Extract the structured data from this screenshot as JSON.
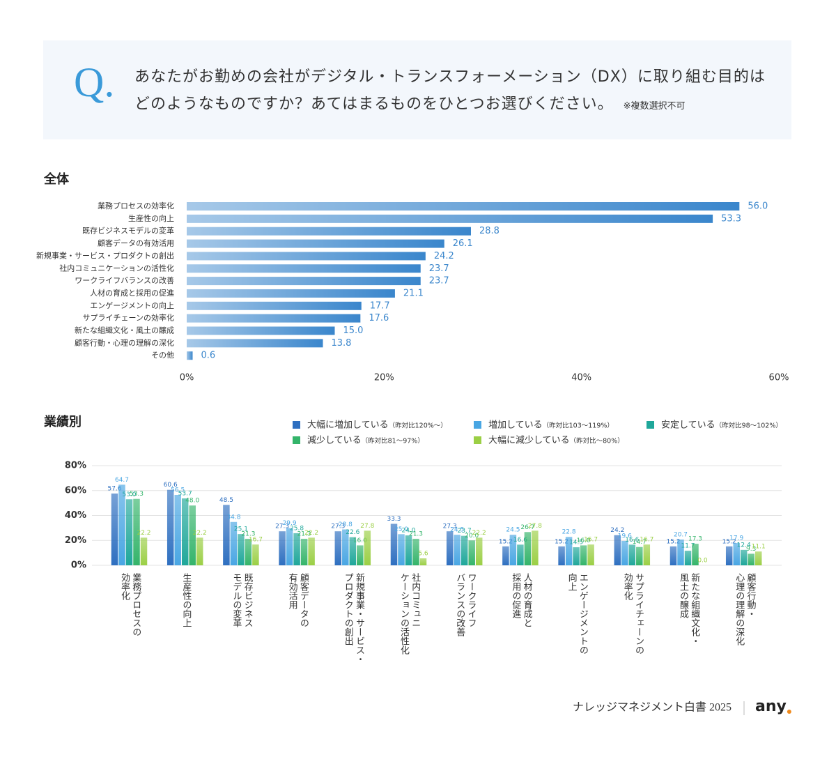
{
  "question": {
    "mark": "Q.",
    "line1": "あなたがお勤めの会社がデジタル・トランスフォーメーション（DX）に取り組む目的は",
    "line2": "どのようなものですか？あてはまるものをひとつお選びください。",
    "note": "※複数選択不可"
  },
  "chart_data": [
    {
      "type": "hbar",
      "title": "全体",
      "color": "#3a86cc",
      "categories": [
        "業務プロセスの効率化",
        "生産性の向上",
        "既存ビジネスモデルの変革",
        "顧客データの有効活用",
        "新規事業・サービス・プロダクトの創出",
        "社内コミュニケーションの活性化",
        "ワークライフバランスの改善",
        "人材の育成と採用の促進",
        "エンゲージメントの向上",
        "サプライチェーンの効率化",
        "新たな組織文化・風土の醸成",
        "顧客行動・心理の理解の深化",
        "その他"
      ],
      "values": [
        56.0,
        53.3,
        28.8,
        26.1,
        24.2,
        23.7,
        23.7,
        21.1,
        17.7,
        17.6,
        15.0,
        13.8,
        0.6
      ],
      "value_labels": [
        "56.0",
        "53.3",
        "28.8",
        "26.1",
        "24.2",
        "23.7",
        "23.7",
        "21.1",
        "17.7",
        "17.6",
        "15.0",
        "13.8",
        "0.6"
      ],
      "xlim": [
        0,
        60
      ],
      "xticks": [
        {
          "value": 0,
          "label": "0%"
        },
        {
          "value": 20,
          "label": "20%"
        },
        {
          "value": 40,
          "label": "40%"
        },
        {
          "value": 60,
          "label": "60%"
        }
      ],
      "grid": false
    },
    {
      "type": "grouped-bar",
      "title": "業績別",
      "categories": [
        "業務プロセスの\n効率化",
        "生産性の向上",
        "既存ビジネス\nモデルの変革",
        "顧客データの\n有効活用",
        "新規事業・サービス・\nプロダクトの創出",
        "社内コミュニ\nケーションの活性化",
        "ワークライフ\nバランスの改善",
        "人材の育成と\n採用の促進",
        "エンゲージメントの\n向上",
        "サプライチェーンの\n効率化",
        "新たな組織文化・\n風土の醸成",
        "顧客行動・\n心理の理解の深化"
      ],
      "series": [
        {
          "name": "大幅に増加している",
          "name_note": "（昨対比120%〜）",
          "color": "#2e6fc0",
          "values": [
            57.6,
            60.6,
            48.5,
            27.3,
            27.3,
            33.3,
            27.3,
            15.2,
            15.2,
            24.2,
            15.2,
            15.2
          ],
          "value_labels": [
            "57.6",
            "60.6",
            "48.5",
            "27.3",
            "27.3",
            "33.3",
            "27.3",
            "15.2",
            "15.2",
            "24.2",
            "15.2",
            "15.2"
          ]
        },
        {
          "name": "増加している",
          "name_note": "（昨対比103〜119%）",
          "color": "#49a6e3",
          "values": [
            64.7,
            56.5,
            34.8,
            29.9,
            28.8,
            25.0,
            24.5,
            24.5,
            22.8,
            19.6,
            20.7,
            17.9
          ],
          "value_labels": [
            "64.7",
            "56.5",
            "34.8",
            "29.9",
            "28.8",
            "25.0",
            "24.5",
            "24.5",
            "22.8",
            "19.6",
            "20.7",
            "17.9"
          ]
        },
        {
          "name": "安定している",
          "name_note": "（昨対比98〜102%）",
          "color": "#1fa79a",
          "values": [
            53.0,
            53.7,
            25.1,
            25.8,
            22.6,
            24.0,
            23.7,
            16.6,
            14.5,
            16.6,
            11.7,
            12.4
          ],
          "value_labels": [
            "53.0",
            "53.7",
            "25.1",
            "25.8",
            "22.6",
            "24.0",
            "23.7",
            "16.6",
            "14.5",
            "16.6",
            "11.7",
            "12.4"
          ]
        },
        {
          "name": "減少している",
          "name_note": "（昨対比81〜97%）",
          "color": "#34b46a",
          "values": [
            53.3,
            48.0,
            21.3,
            21.3,
            16.0,
            21.3,
            20.0,
            26.7,
            16.0,
            14.7,
            17.3,
            9.3
          ],
          "value_labels": [
            "53.3",
            "48.0",
            "21.3",
            "21.3",
            "16.0",
            "21.3",
            "20.0",
            "26.7",
            "16.0",
            "14.7",
            "17.3",
            "9.3"
          ]
        },
        {
          "name": "大幅に減少している",
          "name_note": "（昨対比〜80%）",
          "color": "#9bcf45",
          "values": [
            22.2,
            22.2,
            16.7,
            22.2,
            27.8,
            5.6,
            22.2,
            27.8,
            16.7,
            16.7,
            0.0,
            11.1
          ],
          "value_labels": [
            "22.2",
            "22.2",
            "16.7",
            "22.2",
            "27.8",
            "5.6",
            "22.2",
            "27.8",
            "16.7",
            "16.7",
            "0.0",
            "11.1"
          ]
        }
      ],
      "ylim": [
        0,
        80
      ],
      "yticks": [
        {
          "value": 0,
          "label": "0%"
        },
        {
          "value": 20,
          "label": "20%"
        },
        {
          "value": 40,
          "label": "40%"
        },
        {
          "value": 60,
          "label": "60%"
        },
        {
          "value": 80,
          "label": "80%"
        }
      ],
      "grid": true
    }
  ],
  "footer": {
    "title": "ナレッジマネジメント白書 2025",
    "logo": "any"
  }
}
